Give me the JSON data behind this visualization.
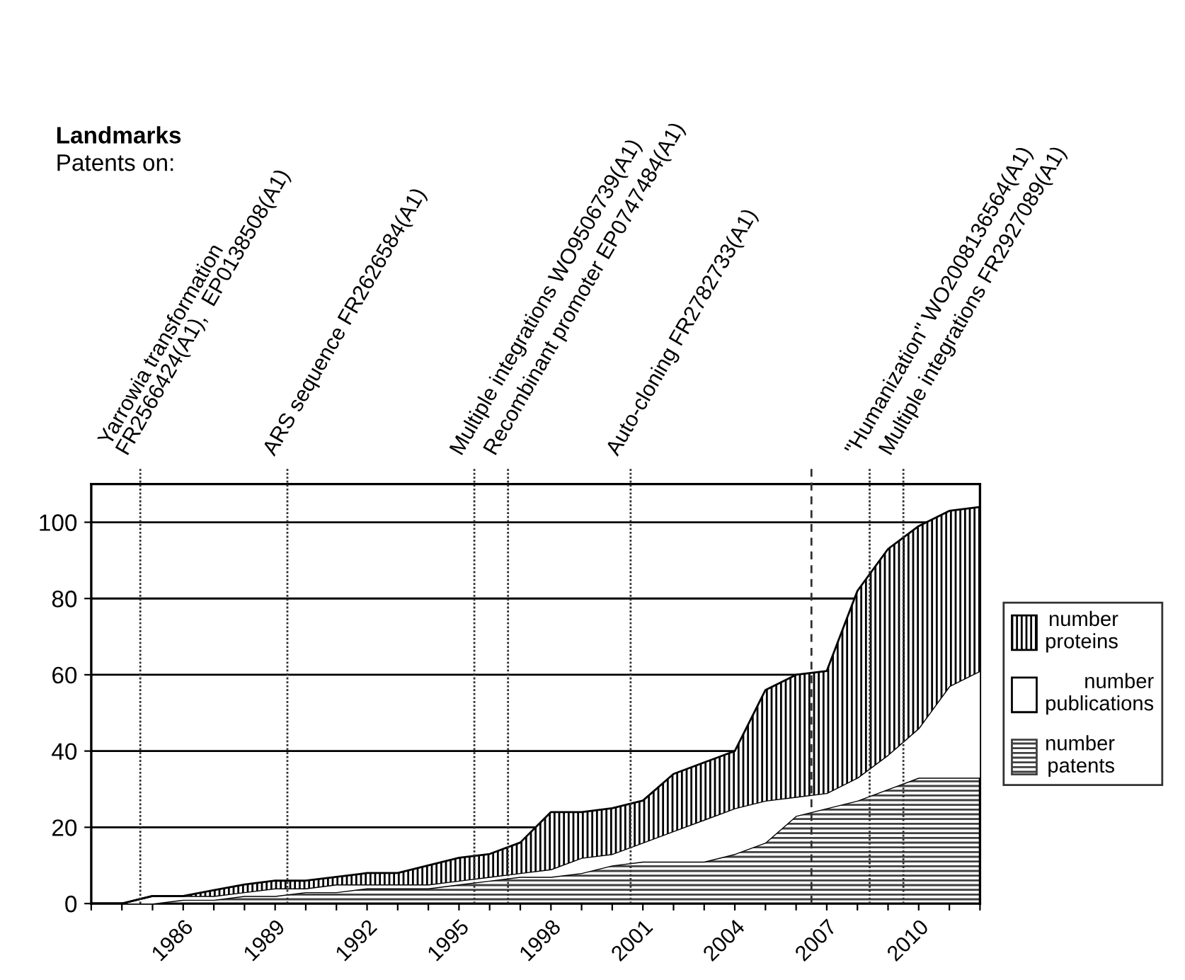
{
  "chart_data": {
    "type": "area",
    "stacked": true,
    "x": [
      1983,
      1984,
      1985,
      1986,
      1987,
      1988,
      1989,
      1990,
      1991,
      1992,
      1993,
      1994,
      1995,
      1996,
      1997,
      1998,
      1999,
      2000,
      2001,
      2002,
      2003,
      2004,
      2005,
      2006,
      2007,
      2008,
      2009,
      2010,
      2011,
      2012
    ],
    "series": [
      {
        "name": "number\npatents",
        "color": "#404040",
        "values": [
          0,
          0,
          0,
          1,
          1,
          2,
          2,
          3,
          3,
          4,
          4,
          4,
          5,
          6,
          7,
          7,
          8,
          10,
          11,
          11,
          11,
          13,
          16,
          23,
          25,
          27,
          30,
          33,
          33,
          33
        ]
      },
      {
        "name": "number\npublications",
        "color": "#ffffff",
        "values": [
          0,
          0,
          2,
          1,
          1,
          1,
          2,
          1,
          2,
          1,
          1,
          1,
          1,
          1,
          1,
          2,
          4,
          3,
          5,
          8,
          11,
          12,
          11,
          5,
          4,
          6,
          9,
          13,
          24,
          28
        ]
      },
      {
        "name": "number\nproteins",
        "color": "#000000",
        "values": [
          0,
          0,
          0,
          0,
          1.5,
          2,
          2,
          2,
          2,
          3,
          3,
          5,
          6,
          6,
          8,
          15,
          12,
          12,
          11,
          15,
          15,
          15,
          29,
          32,
          32,
          49,
          54,
          53,
          46,
          43
        ]
      }
    ],
    "xlim": [
      1983,
      2012
    ],
    "xticks": [
      {
        "value": 1983,
        "label": null
      },
      {
        "value": 1984,
        "label": null
      },
      {
        "value": 1985,
        "label": null
      },
      1986,
      {
        "value": 1987,
        "label": null
      },
      {
        "value": 1988,
        "label": null
      },
      1989,
      {
        "value": 1990,
        "label": null
      },
      {
        "value": 1991,
        "label": null
      },
      1992,
      {
        "value": 1993,
        "label": null
      },
      {
        "value": 1994,
        "label": null
      },
      1995,
      {
        "value": 1996,
        "label": null
      },
      {
        "value": 1997,
        "label": null
      },
      1998,
      {
        "value": 1999,
        "label": null
      },
      {
        "value": 2000,
        "label": null
      },
      2001,
      {
        "value": 2002,
        "label": null
      },
      {
        "value": 2003,
        "label": null
      },
      2004,
      {
        "value": 2005,
        "label": null
      },
      {
        "value": 2006,
        "label": null
      },
      2007,
      {
        "value": 2008,
        "label": null
      },
      {
        "value": 2009,
        "label": null
      },
      2010,
      {
        "value": 2011,
        "label": null
      },
      {
        "value": 2012,
        "label": null
      }
    ],
    "ylim": [
      0,
      110
    ],
    "yticks": [
      0,
      20,
      40,
      60,
      80,
      100
    ],
    "grid": "y",
    "legend": "right",
    "annotations": [
      "Landmarks",
      "Patents on:"
    ],
    "ref_lines": [
      {
        "axis": "x",
        "value": 1984.6,
        "label": "Yarrowia transformation\nFR2566424(A1),  EP0138508(A1)",
        "line_style": "dotted"
      },
      {
        "axis": "x",
        "value": 1989.4,
        "label": "ARS sequence FR2626584(A1)",
        "line_style": "dotted"
      },
      {
        "axis": "x",
        "value": 1995.5,
        "label": "Multiple integrations WO9506739(A1)",
        "line_style": "dotted"
      },
      {
        "axis": "x",
        "value": 1996.6,
        "label": "Recombinant promoter EP0747484(A1)",
        "line_style": "dotted"
      },
      {
        "axis": "x",
        "value": 2000.6,
        "label": "Auto-cloning FR2782733(A1)",
        "line_style": "dotted"
      },
      {
        "axis": "x",
        "value": 2006.5,
        "label": null,
        "line_style": "dashed"
      },
      {
        "axis": "x",
        "value": 2008.4,
        "label": "\"Humanization\" WO2008136564(A1)",
        "line_style": "dotted"
      },
      {
        "axis": "x",
        "value": 2009.5,
        "label": "Multiple integrations FR2927089(A1)",
        "line_style": "dotted"
      }
    ]
  }
}
